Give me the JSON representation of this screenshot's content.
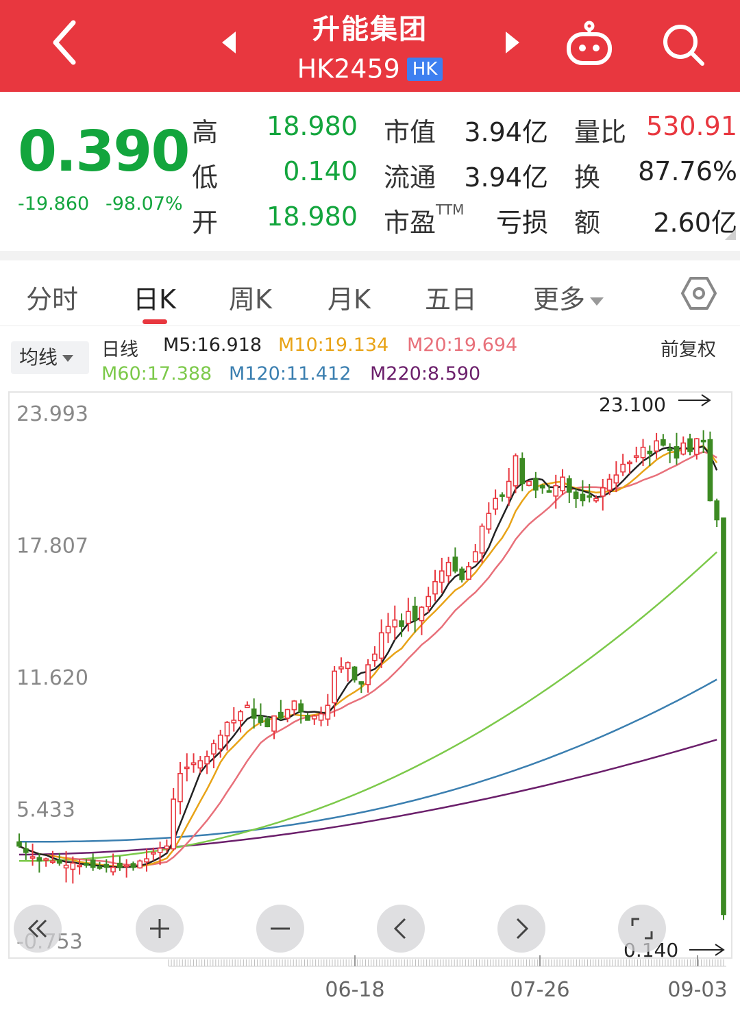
{
  "header": {
    "title": "升能集团",
    "code": "HK2459",
    "market_badge": "HK",
    "icons": [
      "back-arrow-icon",
      "prev-stock-icon",
      "next-stock-icon",
      "robot-icon",
      "search-icon"
    ]
  },
  "quote": {
    "price": "0.390",
    "change": "-19.860",
    "change_pct": "-98.07%",
    "high_label": "高",
    "high": "18.980",
    "low_label": "低",
    "low": "0.140",
    "open_label": "开",
    "open": "18.980",
    "mcap_label": "市值",
    "mcap": "3.94亿",
    "float_label": "流通",
    "float": "3.94亿",
    "pe_label": "市盈",
    "pe_sup": "TTM",
    "pe": "亏损",
    "vr_label": "量比",
    "vr": "530.91",
    "turnover_label": "换",
    "turnover": "87.76%",
    "amount_label": "额",
    "amount": "2.60亿"
  },
  "tabs": {
    "items": [
      "分时",
      "日K",
      "周K",
      "月K",
      "五日"
    ],
    "more": "更多",
    "active": "日K",
    "settings_icon": "hexagon-settings-icon"
  },
  "ma_legend": {
    "button": "均线",
    "title": "日线",
    "m5": "M5:16.918",
    "m10": "M10:19.134",
    "m20": "M20:19.694",
    "m60": "M60:17.388",
    "m120": "M120:11.412",
    "m220": "M220:8.590",
    "adjust": "前复权",
    "colors": {
      "m5": "#222222",
      "m10": "#e8a317",
      "m20": "#e8707a",
      "m60": "#7cc94a",
      "m120": "#3b7fb0",
      "m220": "#6b1f6b",
      "up": "#e8373f",
      "down": "#3c8a23"
    }
  },
  "chart_data": {
    "type": "candlestick",
    "y_ticks": [
      "23.993",
      "17.807",
      "11.620",
      "5.433",
      "-0.753"
    ],
    "ylim": [
      -0.753,
      23.993
    ],
    "x_ticks": [
      "06-18",
      "07-26",
      "09-03"
    ],
    "max_marker": "23.100",
    "min_marker": "0.140",
    "series_visible": [
      "K-line",
      "M5",
      "M10",
      "M20",
      "M60",
      "M120",
      "M220"
    ],
    "price_path": [
      3.6,
      3.3,
      3.1,
      2.9,
      3.0,
      2.9,
      2.8,
      2.7,
      2.8,
      2.7,
      2.7,
      2.6,
      2.6,
      2.6,
      2.6,
      2.6,
      2.7,
      2.6,
      2.9,
      3.0,
      3.3,
      3.5,
      3.6,
      5.8,
      7.0,
      7.3,
      7.5,
      7.6,
      7.8,
      8.4,
      8.8,
      9.4,
      9.5,
      9.9,
      10.2,
      9.6,
      9.4,
      9.2,
      9.7,
      9.6,
      10.0,
      10.4,
      9.9,
      9.5,
      9.7,
      9.8,
      10.2,
      11.8,
      12.0,
      12.2,
      11.4,
      11.2,
      12.1,
      12.6,
      13.6,
      13.9,
      14.2,
      13.9,
      14.6,
      14.2,
      14.8,
      15.3,
      16.0,
      16.5,
      16.9,
      16.5,
      16.1,
      16.7,
      17.4,
      18.6,
      19.2,
      19.9,
      20.0,
      20.7,
      21.9,
      20.6,
      20.7,
      20.3,
      20.4,
      20.2,
      20.5,
      20.9,
      20.2,
      19.9,
      19.8,
      20.0,
      19.9,
      20.4,
      20.8,
      21.0,
      21.5,
      21.6,
      21.9,
      22.3,
      22.0,
      22.6,
      22.4,
      22.2,
      21.8,
      22.5,
      22.1,
      22.7,
      22.6,
      19.8,
      18.9,
      0.39
    ],
    "ma_end_values": {
      "M5": 16.918,
      "M10": 19.134,
      "M20": 19.694,
      "M60": 17.388,
      "M120": 11.412,
      "M220": 8.59
    }
  }
}
